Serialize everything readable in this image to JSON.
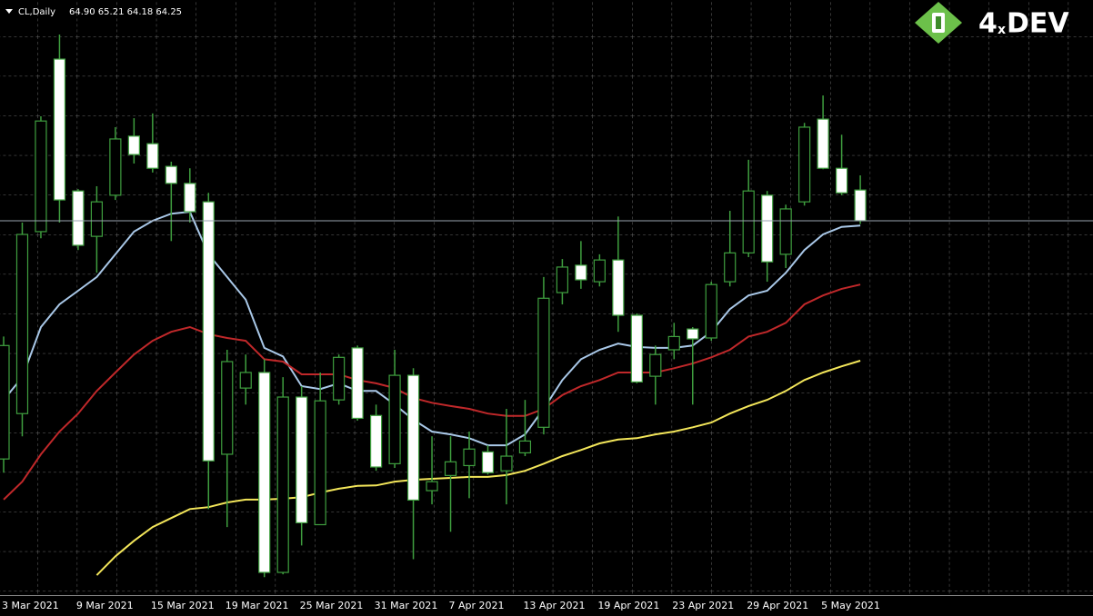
{
  "chart_data": {
    "type": "candlestick",
    "title": "CL,Daily",
    "info": "64.90 65.21 64.18 64.25",
    "logo": [
      "4",
      "x",
      "DEV"
    ],
    "categories": [
      "3 Mar 2021",
      null,
      null,
      null,
      "9 Mar 2021",
      null,
      null,
      null,
      "15 Mar 2021",
      null,
      null,
      null,
      "19 Mar 2021",
      null,
      null,
      null,
      "25 Mar 2021",
      null,
      null,
      null,
      "31 Mar 2021",
      null,
      null,
      null,
      "7 Apr 2021",
      null,
      null,
      null,
      "13 Apr 2021",
      null,
      null,
      null,
      "19 Apr 2021",
      null,
      null,
      null,
      "23 Apr 2021",
      null,
      null,
      null,
      "29 Apr 2021",
      null,
      null,
      null,
      "5 May 2021",
      null,
      null
    ],
    "open": [
      59.21,
      60.17,
      64.02,
      67.67,
      64.88,
      63.92,
      64.79,
      66.04,
      65.88,
      65.4,
      65.04,
      64.65,
      59.31,
      60.71,
      61.04,
      56.81,
      60.52,
      57.82,
      60.46,
      61.56,
      60.13,
      59.11,
      60.98,
      58.54,
      58.86,
      59.07,
      59.36,
      58.96,
      59.34,
      59.88,
      62.73,
      63.31,
      62.96,
      63.42,
      62.25,
      60.96,
      61.52,
      61.96,
      61.77,
      62.96,
      63.57,
      64.79,
      63.54,
      64.65,
      66.4,
      65.36,
      64.9
    ],
    "high": [
      61.8,
      64.21,
      66.46,
      68.19,
      64.92,
      64.98,
      66.23,
      66.42,
      66.52,
      65.5,
      65.36,
      64.84,
      61.52,
      61.42,
      61.32,
      60.94,
      60.75,
      61.04,
      61.42,
      61.61,
      60.36,
      61.52,
      61.13,
      59.69,
      59.69,
      59.79,
      59.5,
      60.27,
      60.46,
      63.06,
      63.44,
      63.82,
      63.54,
      64.34,
      62.29,
      61.61,
      62.09,
      62.0,
      62.96,
      64.46,
      65.54,
      64.88,
      64.59,
      66.32,
      66.9,
      66.07,
      65.21
    ],
    "low": [
      58.92,
      59.69,
      63.88,
      64.21,
      63.63,
      63.15,
      64.69,
      65.46,
      65.27,
      63.82,
      64.21,
      58.15,
      57.77,
      60.36,
      56.71,
      56.77,
      57.38,
      57.81,
      60.36,
      60.02,
      58.96,
      59.02,
      57.09,
      58.25,
      57.67,
      58.38,
      58.88,
      58.25,
      59.27,
      59.73,
      62.48,
      62.81,
      62.86,
      61.9,
      60.81,
      60.36,
      61.32,
      60.36,
      61.71,
      62.86,
      63.48,
      62.96,
      63.25,
      64.57,
      65.34,
      64.79,
      64.18
    ],
    "close": [
      61.61,
      63.96,
      66.36,
      64.69,
      63.73,
      64.65,
      65.98,
      65.65,
      65.36,
      65.04,
      64.44,
      59.17,
      61.27,
      61.04,
      56.81,
      60.52,
      57.86,
      60.44,
      61.36,
      60.07,
      59.04,
      60.98,
      58.34,
      58.73,
      59.15,
      59.42,
      58.92,
      59.27,
      59.59,
      62.61,
      63.27,
      63.0,
      63.42,
      62.25,
      60.84,
      61.42,
      61.8,
      61.75,
      62.9,
      63.57,
      64.88,
      63.38,
      64.5,
      66.23,
      65.36,
      64.84,
      64.25
    ],
    "up_color": "#000000",
    "down_color": "#ffffff",
    "wick_color": "#3f9f3f",
    "series": [
      {
        "color": "#a9c8e8",
        "values": [
          60.46,
          60.94,
          62.0,
          62.48,
          62.77,
          63.06,
          63.54,
          64.02,
          64.25,
          64.4,
          64.44,
          63.54,
          63.06,
          62.58,
          61.56,
          61.38,
          60.75,
          60.69,
          60.81,
          60.65,
          60.65,
          60.36,
          60.04,
          59.79,
          59.73,
          59.65,
          59.5,
          59.5,
          59.73,
          60.27,
          60.88,
          61.32,
          61.52,
          61.65,
          61.58,
          61.56,
          61.56,
          61.61,
          61.9,
          62.38,
          62.67,
          62.77,
          63.15,
          63.63,
          63.96,
          64.12,
          64.15
        ]
      },
      {
        "color": "#c0282a",
        "values": [
          58.35,
          58.73,
          59.31,
          59.79,
          60.17,
          60.65,
          61.04,
          61.42,
          61.71,
          61.9,
          62.0,
          61.85,
          61.77,
          61.71,
          61.32,
          61.27,
          61.0,
          61.0,
          61.0,
          60.88,
          60.81,
          60.71,
          60.5,
          60.4,
          60.33,
          60.27,
          60.17,
          60.12,
          60.12,
          60.27,
          60.56,
          60.75,
          60.88,
          61.04,
          61.04,
          61.04,
          61.13,
          61.23,
          61.36,
          61.52,
          61.8,
          61.9,
          62.09,
          62.48,
          62.67,
          62.81,
          62.9
        ]
      },
      {
        "color": "#f3e65a",
        "values": [
          null,
          null,
          null,
          null,
          null,
          56.75,
          57.15,
          57.48,
          57.77,
          57.96,
          58.15,
          58.19,
          58.29,
          58.35,
          58.35,
          58.37,
          58.4,
          58.5,
          58.58,
          58.64,
          58.65,
          58.73,
          58.77,
          58.79,
          58.81,
          58.83,
          58.83,
          58.87,
          58.96,
          59.11,
          59.27,
          59.4,
          59.54,
          59.62,
          59.65,
          59.73,
          59.79,
          59.88,
          59.98,
          60.17,
          60.33,
          60.46,
          60.65,
          60.88,
          61.04,
          61.17,
          61.29
        ]
      }
    ],
    "ylim": [
      56.33,
      68.92
    ],
    "grid": true,
    "price_line": true
  }
}
